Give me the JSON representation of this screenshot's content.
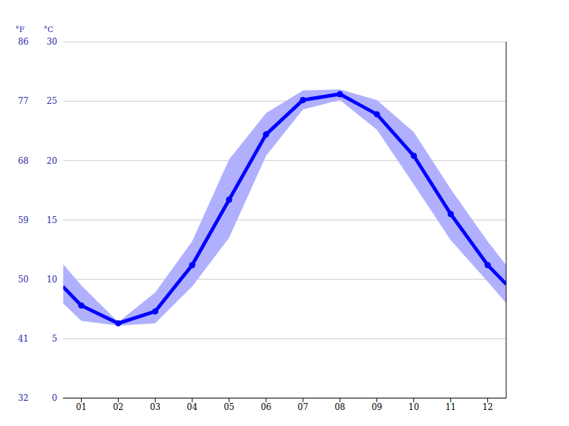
{
  "chart_data": {
    "type": "line",
    "ylabel": "°C",
    "y2label": "°F",
    "x": [
      0.5,
      1,
      2,
      3,
      4,
      5,
      6,
      7,
      8,
      9,
      10,
      11,
      12,
      12.5
    ],
    "xlim": [
      0.5,
      12.5
    ],
    "xticks": [
      {
        "value": 1,
        "label": "01"
      },
      {
        "value": 2,
        "label": "02"
      },
      {
        "value": 3,
        "label": "03"
      },
      {
        "value": 4,
        "label": "04"
      },
      {
        "value": 5,
        "label": "05"
      },
      {
        "value": 6,
        "label": "06"
      },
      {
        "value": 7,
        "label": "07"
      },
      {
        "value": 8,
        "label": "08"
      },
      {
        "value": 9,
        "label": "09"
      },
      {
        "value": 10,
        "label": "10"
      },
      {
        "value": 11,
        "label": "11"
      },
      {
        "value": 12,
        "label": "12"
      }
    ],
    "series": [
      {
        "color": "#0000ff",
        "marker": "o",
        "values": [
          9.4,
          7.8,
          6.3,
          7.3,
          11.2,
          16.7,
          22.2,
          25.1,
          25.6,
          23.9,
          20.4,
          15.5,
          11.2,
          9.6
        ]
      }
    ],
    "band": {
      "color": "#b0b0ff",
      "low": [
        8.0,
        6.5,
        6.1,
        6.3,
        9.4,
        13.5,
        20.4,
        24.3,
        25.1,
        22.6,
        18.0,
        13.3,
        9.8,
        8.0
      ],
      "high": [
        11.3,
        9.5,
        6.4,
        8.9,
        13.2,
        20.1,
        24.0,
        25.9,
        26.0,
        25.1,
        22.4,
        17.6,
        13.2,
        11.2
      ]
    },
    "ylim": [
      0,
      30
    ],
    "yticks": [
      0,
      5,
      10,
      15,
      20,
      25,
      30
    ],
    "y2lim": [
      32,
      86
    ],
    "y2ticks": [
      32,
      41,
      50,
      59,
      68,
      77,
      86
    ],
    "grid": true
  }
}
